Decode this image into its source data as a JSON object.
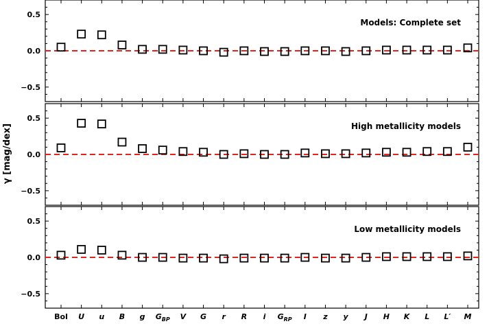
{
  "chart_data": {
    "type": "scatter",
    "ylabel": "γ [mag/dex]",
    "categories": [
      "Bol",
      "U",
      "u",
      "B",
      "g",
      "G_BP",
      "V",
      "G",
      "r",
      "R",
      "i",
      "G_RP",
      "I",
      "z",
      "y",
      "J",
      "H",
      "K",
      "L",
      "L′",
      "M"
    ],
    "category_labels": [
      {
        "main": "Bol",
        "sub": "",
        "italic": false
      },
      {
        "main": "U",
        "sub": "",
        "italic": true
      },
      {
        "main": "u",
        "sub": "",
        "italic": true
      },
      {
        "main": "B",
        "sub": "",
        "italic": true
      },
      {
        "main": "g",
        "sub": "",
        "italic": true
      },
      {
        "main": "G",
        "sub": "BP",
        "italic": true
      },
      {
        "main": "V",
        "sub": "",
        "italic": true
      },
      {
        "main": "G",
        "sub": "",
        "italic": true
      },
      {
        "main": "r",
        "sub": "",
        "italic": true
      },
      {
        "main": "R",
        "sub": "",
        "italic": true
      },
      {
        "main": "i",
        "sub": "",
        "italic": true
      },
      {
        "main": "G",
        "sub": "RP",
        "italic": true
      },
      {
        "main": "I",
        "sub": "",
        "italic": true
      },
      {
        "main": "z",
        "sub": "",
        "italic": true
      },
      {
        "main": "y",
        "sub": "",
        "italic": true
      },
      {
        "main": "J",
        "sub": "",
        "italic": true
      },
      {
        "main": "H",
        "sub": "",
        "italic": true
      },
      {
        "main": "K",
        "sub": "",
        "italic": true
      },
      {
        "main": "L",
        "sub": "",
        "italic": true
      },
      {
        "main": "L′",
        "sub": "",
        "italic": true
      },
      {
        "main": "M",
        "sub": "",
        "italic": true
      }
    ],
    "ylim": [
      -0.7,
      0.7
    ],
    "yticks": [
      0.5,
      0.0,
      -0.5
    ],
    "ytick_labels": [
      "0.5",
      "0.0",
      "−0.5"
    ],
    "reference_line": {
      "y": 0.0,
      "color": "#e8201a",
      "style": "dashed"
    },
    "marker": {
      "shape": "square",
      "fill": "none",
      "stroke": "#000000"
    },
    "grid": false,
    "panels": [
      {
        "title": "Models: Complete set",
        "values": [
          0.05,
          0.23,
          0.22,
          0.08,
          0.02,
          0.02,
          0.01,
          0.0,
          -0.02,
          0.0,
          -0.01,
          -0.01,
          0.0,
          0.0,
          -0.01,
          0.0,
          0.01,
          0.01,
          0.01,
          0.01,
          0.04
        ]
      },
      {
        "title": "High metallicity models",
        "values": [
          0.09,
          0.43,
          0.42,
          0.17,
          0.08,
          0.06,
          0.04,
          0.03,
          0.0,
          0.01,
          0.0,
          0.0,
          0.02,
          0.01,
          0.01,
          0.02,
          0.03,
          0.03,
          0.04,
          0.04,
          0.1
        ]
      },
      {
        "title": "Low metallicity models",
        "values": [
          0.03,
          0.11,
          0.1,
          0.03,
          0.0,
          0.0,
          -0.01,
          -0.01,
          -0.02,
          -0.01,
          -0.01,
          -0.01,
          0.0,
          -0.01,
          -0.01,
          0.0,
          0.01,
          0.01,
          0.01,
          0.01,
          0.02
        ]
      }
    ]
  }
}
